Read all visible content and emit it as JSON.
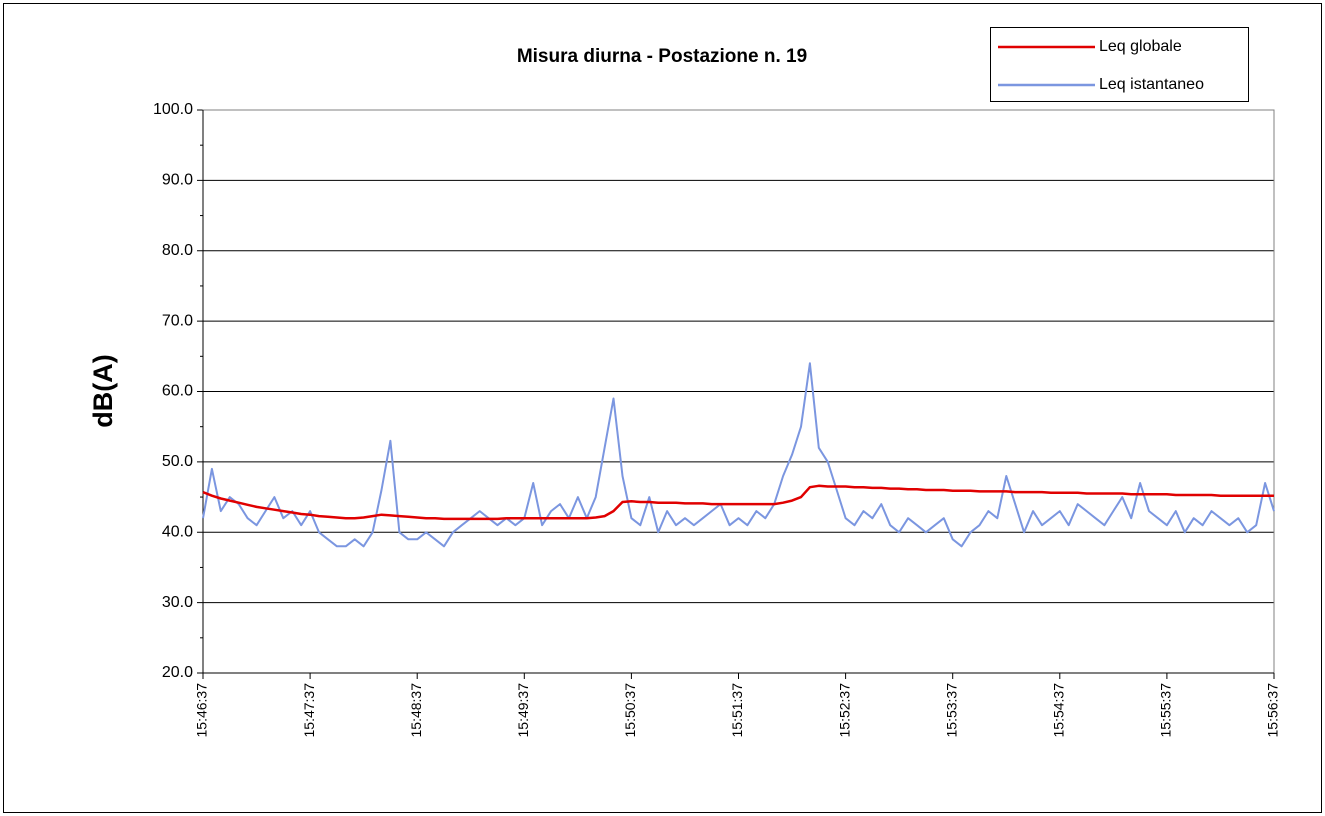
{
  "chart_data": {
    "type": "line",
    "title": "Misura diurna - Postazione n. 19",
    "y_label": "dB(A)",
    "categories": [
      "15:46:37",
      null,
      null,
      null,
      null,
      null,
      null,
      null,
      null,
      null,
      null,
      null,
      "15:47:37",
      null,
      null,
      null,
      null,
      null,
      null,
      null,
      null,
      null,
      null,
      null,
      "15:48:37",
      null,
      null,
      null,
      null,
      null,
      null,
      null,
      null,
      null,
      null,
      null,
      "15:49:37",
      null,
      null,
      null,
      null,
      null,
      null,
      null,
      null,
      null,
      null,
      null,
      "15:50:37",
      null,
      null,
      null,
      null,
      null,
      null,
      null,
      null,
      null,
      null,
      null,
      "15:51:37",
      null,
      null,
      null,
      null,
      null,
      null,
      null,
      null,
      null,
      null,
      null,
      "15:52:37",
      null,
      null,
      null,
      null,
      null,
      null,
      null,
      null,
      null,
      null,
      null,
      "15:53:37",
      null,
      null,
      null,
      null,
      null,
      null,
      null,
      null,
      null,
      null,
      null,
      "15:54:37",
      null,
      null,
      null,
      null,
      null,
      null,
      null,
      null,
      null,
      null,
      null,
      "15:55:37",
      null,
      null,
      null,
      null,
      null,
      null,
      null,
      null,
      null,
      null,
      null,
      "15:56:37"
    ],
    "series": [
      {
        "name": "Leq globale",
        "color": "#e00000",
        "values": [
          45.7,
          45.2,
          44.8,
          44.5,
          44.2,
          43.9,
          43.6,
          43.4,
          43.2,
          43.0,
          42.8,
          42.6,
          42.5,
          42.3,
          42.2,
          42.1,
          42.0,
          42.0,
          42.1,
          42.3,
          42.5,
          42.4,
          42.3,
          42.2,
          42.1,
          42.0,
          42.0,
          41.9,
          41.9,
          41.9,
          41.9,
          41.9,
          41.9,
          41.9,
          42.0,
          42.0,
          42.0,
          42.0,
          42.0,
          42.0,
          42.0,
          42.0,
          42.0,
          42.0,
          42.1,
          42.3,
          43.0,
          44.3,
          44.4,
          44.3,
          44.3,
          44.2,
          44.2,
          44.2,
          44.1,
          44.1,
          44.1,
          44.0,
          44.0,
          44.0,
          44.0,
          44.0,
          44.0,
          44.0,
          44.0,
          44.2,
          44.5,
          45.0,
          46.4,
          46.6,
          46.5,
          46.5,
          46.5,
          46.4,
          46.4,
          46.3,
          46.3,
          46.2,
          46.2,
          46.1,
          46.1,
          46.0,
          46.0,
          46.0,
          45.9,
          45.9,
          45.9,
          45.8,
          45.8,
          45.8,
          45.8,
          45.7,
          45.7,
          45.7,
          45.7,
          45.6,
          45.6,
          45.6,
          45.6,
          45.5,
          45.5,
          45.5,
          45.5,
          45.5,
          45.4,
          45.4,
          45.4,
          45.4,
          45.4,
          45.3,
          45.3,
          45.3,
          45.3,
          45.3,
          45.2,
          45.2,
          45.2,
          45.2,
          45.2,
          45.2,
          45.2
        ]
      },
      {
        "name": "Leq istantaneo",
        "color": "#7b96e0",
        "values": [
          42,
          49,
          43,
          45,
          44,
          42,
          41,
          43,
          45,
          42,
          43,
          41,
          43,
          40,
          39,
          38,
          38,
          39,
          38,
          40,
          46,
          53,
          40,
          39,
          39,
          40,
          39,
          38,
          40,
          41,
          42,
          43,
          42,
          41,
          42,
          41,
          42,
          47,
          41,
          43,
          44,
          42,
          45,
          42,
          45,
          52,
          59,
          48,
          42,
          41,
          45,
          40,
          43,
          41,
          42,
          41,
          42,
          43,
          44,
          41,
          42,
          41,
          43,
          42,
          44,
          48,
          51,
          55,
          64,
          52,
          50,
          46,
          42,
          41,
          43,
          42,
          44,
          41,
          40,
          42,
          41,
          40,
          41,
          42,
          39,
          38,
          40,
          41,
          43,
          42,
          48,
          44,
          40,
          43,
          41,
          42,
          43,
          41,
          44,
          43,
          42,
          41,
          43,
          45,
          42,
          47,
          43,
          42,
          41,
          43,
          40,
          42,
          41,
          43,
          42,
          41,
          42,
          40,
          41,
          47,
          43
        ]
      }
    ],
    "ylim": [
      20,
      100
    ],
    "yticks": [
      {
        "value": 20,
        "label": "20.0"
      },
      {
        "value": 30,
        "label": "30.0"
      },
      {
        "value": 40,
        "label": "40.0"
      },
      {
        "value": 50,
        "label": "50.0"
      },
      {
        "value": 60,
        "label": "60.0"
      },
      {
        "value": 70,
        "label": "70.0"
      },
      {
        "value": 80,
        "label": "80.0"
      },
      {
        "value": 90,
        "label": "90.0"
      },
      {
        "value": 100,
        "label": "100.0"
      }
    ],
    "grid": true,
    "legend": "top-right"
  }
}
